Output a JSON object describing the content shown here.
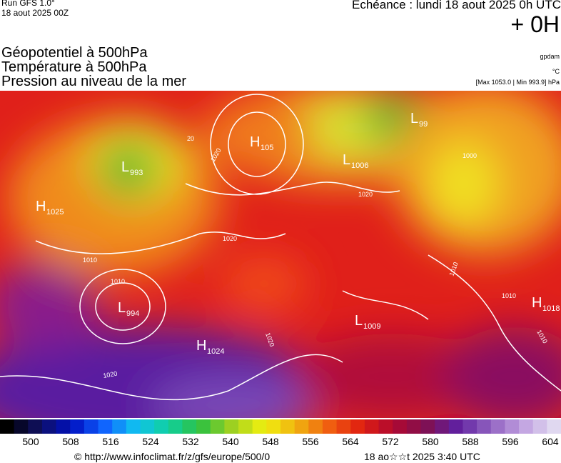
{
  "header": {
    "run": "Run GFS 1.0°",
    "date": "18 aout 2025 00Z",
    "echeance": "Echéance : lundi 18 aout 2025 0h UTC",
    "offset": "+ 0H",
    "fields": [
      "Géopotentiel à 500hPa",
      "Température à 500hPa",
      "Pression au niveau de la mer"
    ],
    "units": [
      "gpdam",
      "°C",
      "[Max 1053.0 | Min 993.9] hPa"
    ]
  },
  "centers": [
    {
      "type": "H",
      "value": "1025"
    },
    {
      "type": "L",
      "value": "993"
    },
    {
      "type": "H",
      "value": "105"
    },
    {
      "type": "L",
      "value": "1006"
    },
    {
      "type": "L",
      "value": "99"
    },
    {
      "type": "L",
      "value": "994"
    },
    {
      "type": "H",
      "value": "1024"
    },
    {
      "type": "L",
      "value": "1009"
    },
    {
      "type": "H",
      "value": "1018"
    }
  ],
  "contour_labels": [
    "1020",
    "1020",
    "1010",
    "1010",
    "1020",
    "1020",
    "1020",
    "1000",
    "1010",
    "1010",
    "1010",
    "20"
  ],
  "colorbar": {
    "labels": [
      "500",
      "508",
      "516",
      "524",
      "532",
      "540",
      "548",
      "556",
      "564",
      "572",
      "580",
      "588",
      "596",
      "604"
    ]
  },
  "footer": {
    "source": "© http://www.infoclimat.fr/z/gfs/europe/500/0",
    "time": "18 ao☆☆t 2025  3:40 UTC"
  }
}
